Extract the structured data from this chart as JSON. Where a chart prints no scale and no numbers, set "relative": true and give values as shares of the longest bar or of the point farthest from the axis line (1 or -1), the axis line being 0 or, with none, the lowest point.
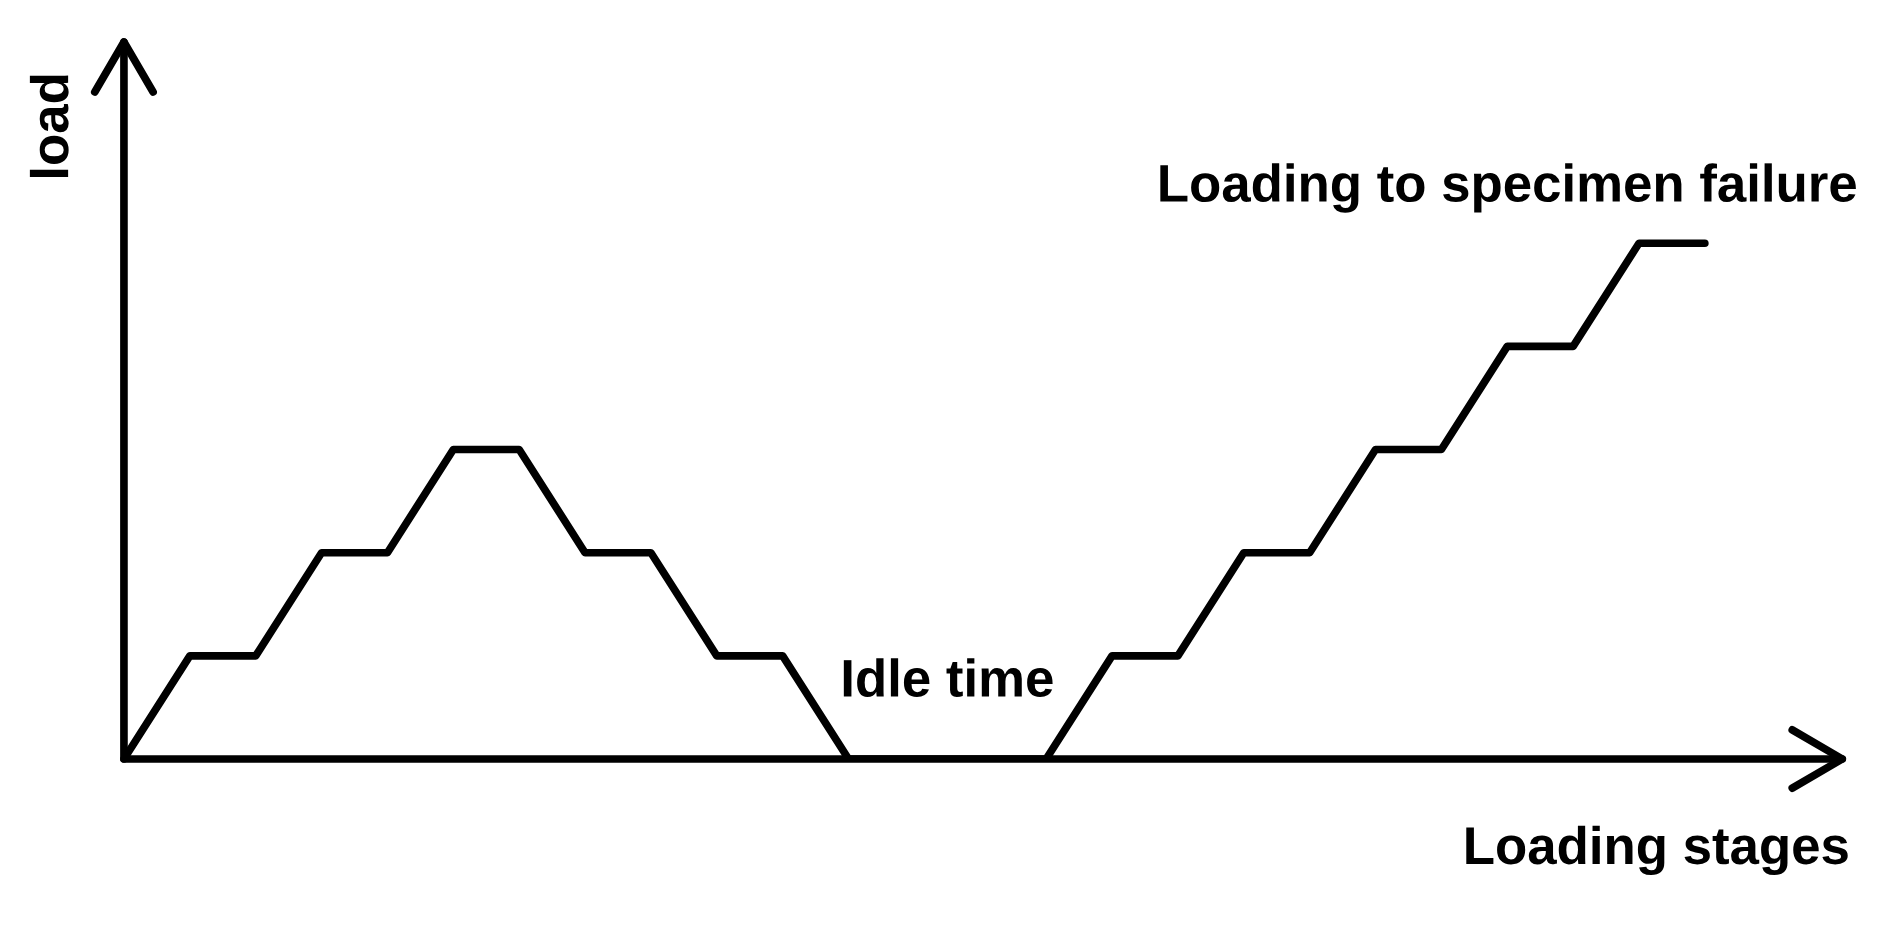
{
  "chart_data": {
    "type": "line",
    "relative": true,
    "xlabel": "Loading stages",
    "ylabel": "load",
    "categories": [
      null,
      null,
      null,
      null,
      null,
      null,
      null,
      null,
      null,
      null,
      null,
      null,
      null,
      null,
      null,
      null,
      null,
      null,
      null,
      null,
      null,
      null,
      null,
      null,
      null
    ],
    "series": [
      {
        "color": "#000000",
        "values": [
          0,
          0.2,
          0.2,
          0.4,
          0.4,
          0.6,
          0.6,
          0.4,
          0.4,
          0.2,
          0.2,
          0,
          0,
          0,
          0,
          0.2,
          0.2,
          0.4,
          0.4,
          0.6,
          0.6,
          0.8,
          0.8,
          1,
          1
        ]
      }
    ],
    "annotations": [
      "Idle time",
      "Loading to specimen failure"
    ],
    "line_style": "solid"
  }
}
